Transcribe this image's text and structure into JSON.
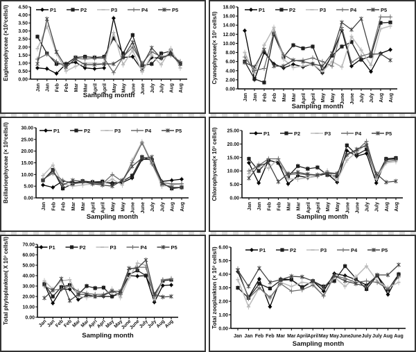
{
  "legend": [
    "P1",
    "P2",
    "P3",
    "P4",
    "P5"
  ],
  "series_colors": [
    "#000000",
    "#1e1e1e",
    "#bdbdbd",
    "#6a6a6a",
    "#444444"
  ],
  "chart_data": [
    {
      "type": "line",
      "title": "",
      "ylabel": "Euglenophyceae (×10³cells/l)",
      "xlabel": "Sampling month",
      "ylim": [
        0,
        4.5
      ],
      "yticks": [
        "0.00",
        "0.50",
        "1.00",
        "1.50",
        "2.00",
        "2.50",
        "3.00",
        "3.50",
        "4.00",
        "4.50"
      ],
      "categories": [
        "Jan",
        "Jan",
        "Feb",
        "Feb",
        "Mar",
        "Mar",
        "April",
        "April",
        "May",
        "May",
        "June",
        "June",
        "July",
        "July",
        "Aug",
        "Aug"
      ],
      "series": [
        {
          "name": "P1",
          "values": [
            0.7,
            0.65,
            0.35,
            0.95,
            1.05,
            0.7,
            0.65,
            0.7,
            3.8,
            1.35,
            1.4,
            0.55,
            1.35,
            1.3,
            1.6,
            1.0
          ]
        },
        {
          "name": "P2",
          "values": [
            2.65,
            1.6,
            0.95,
            0.95,
            1.35,
            1.4,
            1.35,
            1.4,
            2.55,
            1.6,
            2.75,
            0.85,
            0.95,
            1.6,
            1.75,
            0.95
          ]
        },
        {
          "name": "P3",
          "values": [
            1.9,
            3.3,
            1.6,
            0.5,
            0.8,
            1.0,
            1.0,
            0.95,
            2.9,
            0.9,
            1.8,
            0.45,
            1.5,
            0.9,
            1.9,
            0.7
          ]
        },
        {
          "name": "P4",
          "values": [
            1.25,
            1.55,
            1.1,
            0.75,
            1.3,
            1.25,
            1.3,
            1.3,
            0.4,
            1.4,
            2.0,
            1.0,
            1.7,
            1.4,
            1.5,
            1.1
          ]
        },
        {
          "name": "P5",
          "values": [
            0.95,
            3.75,
            1.7,
            0.75,
            1.25,
            0.9,
            0.9,
            0.95,
            0.95,
            1.35,
            2.3,
            0.85,
            1.95,
            1.3,
            1.55,
            0.95
          ]
        }
      ]
    },
    {
      "type": "line",
      "title": "",
      "ylabel": "Cyanophyceae(× 10³ cells/l)",
      "xlabel": "Sampling month",
      "ylim": [
        0,
        18
      ],
      "yticks": [
        "0.00",
        "2.00",
        "4.00",
        "6.00",
        "8.00",
        "10.00",
        "12.00",
        "14.00",
        "16.00",
        "18.00"
      ],
      "categories": [
        "Jan",
        "Jan",
        "Feb",
        "Feb",
        "Mar",
        "Mar",
        "April",
        "April",
        "May",
        "May",
        "June",
        "June",
        "July",
        "July",
        "Aug",
        "Aug"
      ],
      "series": [
        {
          "name": "P1",
          "values": [
            12.8,
            2.0,
            8.0,
            5.5,
            4.6,
            5.4,
            4.8,
            5.5,
            3.5,
            7.5,
            12.9,
            5.0,
            6.6,
            3.8,
            7.8,
            8.6
          ]
        },
        {
          "name": "P2",
          "values": [
            6.0,
            2.2,
            1.4,
            12.0,
            7.0,
            9.6,
            8.9,
            9.3,
            4.0,
            7.3,
            9.3,
            10.3,
            6.4,
            7.2,
            14.5,
            14.6
          ]
        },
        {
          "name": "P3",
          "values": [
            8.0,
            3.5,
            9.6,
            13.5,
            6.5,
            4.7,
            5.0,
            5.5,
            3.8,
            6.0,
            4.8,
            11.5,
            8.5,
            5.2,
            13.2,
            13.8
          ]
        },
        {
          "name": "P4",
          "values": [
            7.0,
            4.0,
            4.5,
            12.5,
            7.5,
            6.2,
            6.3,
            6.8,
            6.0,
            5.0,
            13.5,
            5.8,
            7.2,
            7.8,
            15.8,
            15.8
          ]
        },
        {
          "name": "P5",
          "values": [
            5.8,
            4.8,
            8.6,
            5.0,
            5.0,
            6.3,
            6.0,
            5.5,
            5.0,
            7.8,
            14.6,
            13.0,
            15.4,
            7.6,
            7.7,
            6.3
          ]
        }
      ]
    },
    {
      "type": "line",
      "title": "",
      "ylabel": "Bcillarionphyceae (× 10³cells/l)",
      "xlabel": "Sampling month",
      "ylim": [
        0,
        30
      ],
      "yticks": [
        "0.00",
        "5.00",
        "10.00",
        "15.00",
        "20.00",
        "25.00",
        "30.00"
      ],
      "categories": [
        "Jan",
        "Feb",
        "Feb",
        "Mar",
        "Mar",
        "April",
        "April",
        "May",
        "May",
        "June",
        "June",
        "July",
        "July",
        "Aug",
        "Aug"
      ],
      "series": [
        {
          "name": "P1",
          "values": [
            5.5,
            4.5,
            7.2,
            6.5,
            6.8,
            6.5,
            6.5,
            6.5,
            6.5,
            8.5,
            16.5,
            16.5,
            7.0,
            7.5,
            8.0
          ]
        },
        {
          "name": "P2",
          "values": [
            7.5,
            12.0,
            4.0,
            6.0,
            7.2,
            6.8,
            7.0,
            6.0,
            7.0,
            9.5,
            17.5,
            16.0,
            6.5,
            4.0,
            4.5
          ]
        },
        {
          "name": "P3",
          "values": [
            9.5,
            14.0,
            6.0,
            5.0,
            5.5,
            6.0,
            6.0,
            8.0,
            5.5,
            16.0,
            24.0,
            15.0,
            5.0,
            5.5,
            6.0
          ]
        },
        {
          "name": "P4",
          "values": [
            8.0,
            10.5,
            7.5,
            6.0,
            6.5,
            6.5,
            6.0,
            10.0,
            7.0,
            15.0,
            23.5,
            14.5,
            6.5,
            6.0,
            6.0
          ]
        },
        {
          "name": "P5",
          "values": [
            7.5,
            11.5,
            5.5,
            7.5,
            7.0,
            6.0,
            5.5,
            5.0,
            7.5,
            13.5,
            17.0,
            17.5,
            6.0,
            4.5,
            4.5
          ]
        }
      ]
    },
    {
      "type": "line",
      "title": "",
      "ylabel": "Chlorophyceae(× 10³ cells/l)",
      "xlabel": "Sampling month",
      "ylim": [
        0,
        25
      ],
      "yticks": [
        "0.00",
        "5.00",
        "10.00",
        "15.00",
        "20.00",
        "25.00"
      ],
      "categories": [
        "Jan",
        "Jan",
        "Feb",
        "Feb",
        "Mar",
        "Mar",
        "April",
        "April",
        "May",
        "May",
        "June",
        "June",
        "July",
        "July",
        "Aug",
        "Aug"
      ],
      "series": [
        {
          "name": "P1",
          "values": [
            13.0,
            5.5,
            14.0,
            13.0,
            5.2,
            8.2,
            7.5,
            8.2,
            9.0,
            5.8,
            17.5,
            15.5,
            16.5,
            5.5,
            14.2,
            14.5
          ]
        },
        {
          "name": "P2",
          "values": [
            14.5,
            10.0,
            14.0,
            13.0,
            8.0,
            11.8,
            10.8,
            11.3,
            8.5,
            8.0,
            19.5,
            16.0,
            18.0,
            7.5,
            14.5,
            14.8
          ]
        },
        {
          "name": "P3",
          "values": [
            9.0,
            12.5,
            11.0,
            14.5,
            7.0,
            7.0,
            7.5,
            8.0,
            10.0,
            6.5,
            14.0,
            17.0,
            20.0,
            7.0,
            13.0,
            13.5
          ]
        },
        {
          "name": "P4",
          "values": [
            10.0,
            12.0,
            14.5,
            14.5,
            8.5,
            9.0,
            8.5,
            8.5,
            9.5,
            9.0,
            16.0,
            17.5,
            21.0,
            8.0,
            13.5,
            14.0
          ]
        },
        {
          "name": "P5",
          "values": [
            7.3,
            12.0,
            13.0,
            6.0,
            9.0,
            9.5,
            8.8,
            8.5,
            9.0,
            9.0,
            16.0,
            18.0,
            19.5,
            9.0,
            5.8,
            6.2
          ]
        }
      ]
    },
    {
      "type": "line",
      "title": "",
      "ylabel": "Total phytoplankton( X 10³ cells/l)",
      "xlabel": "Sampling month",
      "ylim": [
        0,
        70
      ],
      "yticks": [
        "0.00",
        "10.00",
        "20.00",
        "30.00",
        "40.00",
        "50.00",
        "60.00",
        "70.00"
      ],
      "categories": [
        "Jan",
        "Jan",
        "Feb",
        "Feb",
        "Mar",
        "Mar",
        "Apri",
        "Apri",
        "May",
        "May",
        "June",
        "June",
        "July",
        "July",
        "Aug",
        "Aug"
      ],
      "series": [
        {
          "name": "P1",
          "values": [
            32,
            13.5,
            27,
            27,
            17,
            21,
            20,
            20,
            20,
            24,
            40,
            39.5,
            40,
            14.5,
            30.5,
            31
          ]
        },
        {
          "name": "P2",
          "values": [
            32,
            20,
            29,
            31,
            22,
            30,
            28,
            28.5,
            20,
            23,
            41,
            45,
            40,
            22,
            35,
            36
          ]
        },
        {
          "name": "P3",
          "values": [
            35,
            27,
            35,
            36,
            20,
            19,
            20,
            21,
            27,
            19,
            38,
            52,
            50,
            17,
            36,
            37
          ]
        },
        {
          "name": "P4",
          "values": [
            30,
            26,
            27,
            30,
            25,
            23,
            22,
            22,
            25,
            22,
            46,
            48,
            48,
            20,
            36,
            37
          ]
        },
        {
          "name": "P5",
          "values": [
            18.5,
            26,
            37,
            16,
            22,
            22,
            20,
            21,
            25,
            25,
            47,
            47,
            55,
            22,
            19.5,
            20
          ]
        }
      ]
    },
    {
      "type": "line",
      "title": "",
      "ylabel": "Total zooplankton (× 10³ cells/l)",
      "xlabel": "Sampling month",
      "ylim": [
        0,
        6
      ],
      "yticks": [
        "0.00",
        "1.00",
        "2.00",
        "3.00",
        "4.00",
        "5.00",
        "6.00"
      ],
      "categories": [
        "Jan",
        "Jan",
        "Feb",
        "Feb",
        "Mar",
        "Mar",
        "April",
        "April",
        "May",
        "May",
        "June",
        "June",
        "July",
        "July",
        "Aug",
        "Aug"
      ],
      "series": [
        {
          "name": "P1",
          "values": [
            4.2,
            2.3,
            3.65,
            1.6,
            3.65,
            3.6,
            3.0,
            3.5,
            2.75,
            4.05,
            3.9,
            3.6,
            3.2,
            3.9,
            2.5,
            4.0
          ]
        },
        {
          "name": "P2",
          "values": [
            3.0,
            2.25,
            3.3,
            2.95,
            3.55,
            3.6,
            3.05,
            3.5,
            3.1,
            3.5,
            4.6,
            3.7,
            2.9,
            3.9,
            2.85,
            4.0
          ]
        },
        {
          "name": "P3",
          "values": [
            3.6,
            1.6,
            3.0,
            2.2,
            3.4,
            3.1,
            3.4,
            3.3,
            2.4,
            3.8,
            3.1,
            3.8,
            4.6,
            3.5,
            3.0,
            3.4
          ]
        },
        {
          "name": "P4",
          "values": [
            4.4,
            2.2,
            3.0,
            2.3,
            3.3,
            2.75,
            2.85,
            3.2,
            2.4,
            3.9,
            3.7,
            3.4,
            3.5,
            3.4,
            2.9,
            3.8
          ]
        },
        {
          "name": "P5",
          "values": [
            4.3,
            3.1,
            4.45,
            3.4,
            3.6,
            3.85,
            3.8,
            3.5,
            3.0,
            3.9,
            3.5,
            3.3,
            3.1,
            3.95,
            3.95,
            4.7
          ]
        }
      ]
    }
  ]
}
